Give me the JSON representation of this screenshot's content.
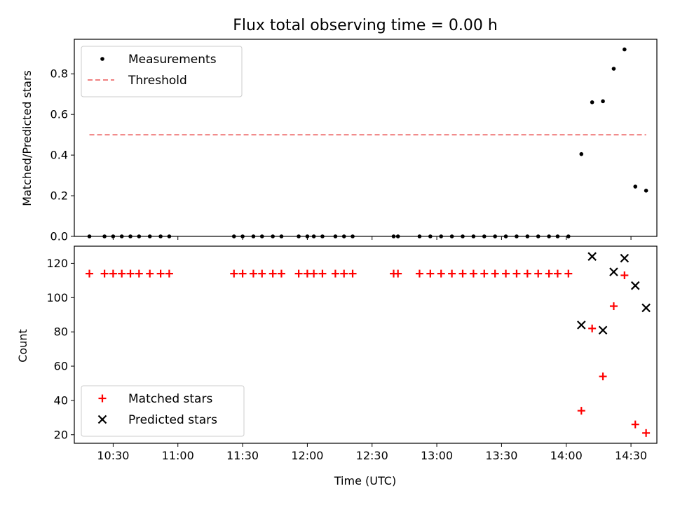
{
  "chart_data": [
    {
      "type": "scatter",
      "title": "Flux total observing time = 0.00 h",
      "xlabel": "",
      "ylabel": "Matched/Predicted stars",
      "xlim": [
        "10:12",
        "14:42"
      ],
      "ylim": [
        0,
        0.97
      ],
      "yticks": [
        "0.0",
        "0.2",
        "0.4",
        "0.6",
        "0.8"
      ],
      "legend_position": "top-left",
      "series": [
        {
          "name": "Measurements",
          "marker": "dot",
          "color": "#000000",
          "points": [
            [
              "10:19",
              0
            ],
            [
              "10:26",
              0
            ],
            [
              "10:30",
              0
            ],
            [
              "10:34",
              0
            ],
            [
              "10:38",
              0
            ],
            [
              "10:42",
              0
            ],
            [
              "10:47",
              0
            ],
            [
              "10:52",
              0
            ],
            [
              "10:56",
              0
            ],
            [
              "11:26",
              0
            ],
            [
              "11:30",
              0
            ],
            [
              "11:35",
              0
            ],
            [
              "11:39",
              0
            ],
            [
              "11:44",
              0
            ],
            [
              "11:48",
              0
            ],
            [
              "11:56",
              0
            ],
            [
              "12:00",
              0
            ],
            [
              "12:03",
              0
            ],
            [
              "12:07",
              0
            ],
            [
              "12:13",
              0
            ],
            [
              "12:17",
              0
            ],
            [
              "12:21",
              0
            ],
            [
              "12:40",
              0
            ],
            [
              "12:42",
              0
            ],
            [
              "12:52",
              0
            ],
            [
              "12:57",
              0
            ],
            [
              "13:02",
              0
            ],
            [
              "13:07",
              0
            ],
            [
              "13:12",
              0
            ],
            [
              "13:17",
              0
            ],
            [
              "13:22",
              0
            ],
            [
              "13:27",
              0
            ],
            [
              "13:32",
              0
            ],
            [
              "13:37",
              0
            ],
            [
              "13:42",
              0
            ],
            [
              "13:47",
              0
            ],
            [
              "13:52",
              0
            ],
            [
              "13:56",
              0
            ],
            [
              "14:01",
              0
            ],
            [
              "14:07",
              0.405
            ],
            [
              "14:12",
              0.66
            ],
            [
              "14:17",
              0.665
            ],
            [
              "14:22",
              0.825
            ],
            [
              "14:27",
              0.92
            ],
            [
              "14:32",
              0.245
            ],
            [
              "14:37",
              0.225
            ]
          ]
        },
        {
          "name": "Threshold",
          "marker": "dashed-line",
          "color": "#f08080",
          "points": [
            [
              "10:19",
              0.5
            ],
            [
              "14:37",
              0.5
            ]
          ]
        }
      ]
    },
    {
      "type": "scatter",
      "title": "",
      "xlabel": "Time (UTC)",
      "ylabel": "Count",
      "xlim": [
        "10:12",
        "14:42"
      ],
      "ylim": [
        15,
        130
      ],
      "xticks": [
        "10:30",
        "11:00",
        "11:30",
        "12:00",
        "12:30",
        "13:00",
        "13:30",
        "14:00",
        "14:30"
      ],
      "yticks": [
        "20",
        "40",
        "60",
        "80",
        "100",
        "120"
      ],
      "legend_position": "bottom-left",
      "series": [
        {
          "name": "Matched stars",
          "marker": "plus",
          "color": "#ff0000",
          "points": [
            [
              "10:19",
              114
            ],
            [
              "10:26",
              114
            ],
            [
              "10:30",
              114
            ],
            [
              "10:34",
              114
            ],
            [
              "10:38",
              114
            ],
            [
              "10:42",
              114
            ],
            [
              "10:47",
              114
            ],
            [
              "10:52",
              114
            ],
            [
              "10:56",
              114
            ],
            [
              "11:26",
              114
            ],
            [
              "11:30",
              114
            ],
            [
              "11:35",
              114
            ],
            [
              "11:39",
              114
            ],
            [
              "11:44",
              114
            ],
            [
              "11:48",
              114
            ],
            [
              "11:56",
              114
            ],
            [
              "12:00",
              114
            ],
            [
              "12:03",
              114
            ],
            [
              "12:07",
              114
            ],
            [
              "12:13",
              114
            ],
            [
              "12:17",
              114
            ],
            [
              "12:21",
              114
            ],
            [
              "12:40",
              114
            ],
            [
              "12:42",
              114
            ],
            [
              "12:52",
              114
            ],
            [
              "12:57",
              114
            ],
            [
              "13:02",
              114
            ],
            [
              "13:07",
              114
            ],
            [
              "13:12",
              114
            ],
            [
              "13:17",
              114
            ],
            [
              "13:22",
              114
            ],
            [
              "13:27",
              114
            ],
            [
              "13:32",
              114
            ],
            [
              "13:37",
              114
            ],
            [
              "13:42",
              114
            ],
            [
              "13:47",
              114
            ],
            [
              "13:52",
              114
            ],
            [
              "13:56",
              114
            ],
            [
              "14:01",
              114
            ],
            [
              "14:07",
              34
            ],
            [
              "14:12",
              82
            ],
            [
              "14:17",
              54
            ],
            [
              "14:22",
              95
            ],
            [
              "14:27",
              113
            ],
            [
              "14:32",
              26
            ],
            [
              "14:37",
              21
            ]
          ]
        },
        {
          "name": "Predicted stars",
          "marker": "x",
          "color": "#000000",
          "points": [
            [
              "14:07",
              84
            ],
            [
              "14:12",
              124
            ],
            [
              "14:17",
              81
            ],
            [
              "14:22",
              115
            ],
            [
              "14:27",
              123
            ],
            [
              "14:32",
              107
            ],
            [
              "14:37",
              94
            ]
          ]
        }
      ]
    }
  ]
}
